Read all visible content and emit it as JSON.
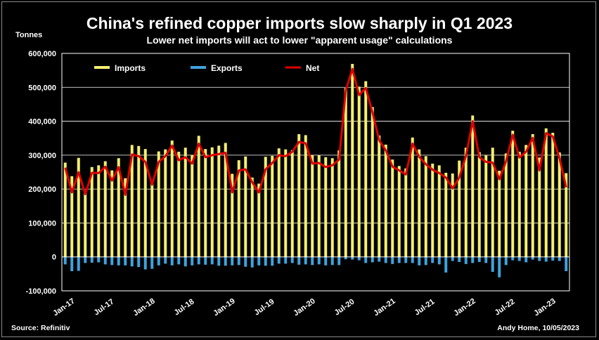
{
  "title": "China's refined copper imports slow sharply in Q1 2023",
  "subtitle": "Lower net imports will act to lower \"apparent usage\" calculations",
  "y_unit": "Tonnes",
  "source": "Source: Refinitiv",
  "byline": "Andy Home, 10/05/2023",
  "colors": {
    "imports": "#f5ef6e",
    "exports": "#3fa3dd",
    "net": "#e00000",
    "negative_tick": "#e00000"
  },
  "chart_data": {
    "type": "bar",
    "ylim": [
      -100000,
      600000
    ],
    "yticks": [
      {
        "value": 600000,
        "label": "600,000"
      },
      {
        "value": 500000,
        "label": "500,000"
      },
      {
        "value": 400000,
        "label": "400,000"
      },
      {
        "value": 300000,
        "label": "300,000"
      },
      {
        "value": 200000,
        "label": "200,000"
      },
      {
        "value": 100000,
        "label": "100,000"
      },
      {
        "value": 0,
        "label": "0"
      },
      {
        "value": -100000,
        "label": "-100,000"
      }
    ],
    "x_tick_labels": [
      {
        "index": 0,
        "label": "Jan-17"
      },
      {
        "index": 6,
        "label": "Jul-17"
      },
      {
        "index": 12,
        "label": "Jan-18"
      },
      {
        "index": 18,
        "label": "Jul-18"
      },
      {
        "index": 24,
        "label": "Jan-19"
      },
      {
        "index": 30,
        "label": "Jul-19"
      },
      {
        "index": 36,
        "label": "Jan-20"
      },
      {
        "index": 42,
        "label": "Jul-20"
      },
      {
        "index": 48,
        "label": "Jan-21"
      },
      {
        "index": 54,
        "label": "Jul-21"
      },
      {
        "index": 60,
        "label": "Jan-22"
      },
      {
        "index": 66,
        "label": "Jul-22"
      },
      {
        "index": 72,
        "label": "Jan-23"
      }
    ],
    "legend": {
      "placement": "top-left",
      "labels": [
        "Imports",
        "Exports",
        "Net"
      ]
    },
    "grid": true,
    "series": [
      {
        "name": "Imports",
        "type": "bar",
        "values": [
          278000,
          238000,
          292000,
          197000,
          265000,
          270000,
          282000,
          255000,
          291000,
          232000,
          330000,
          327000,
          318000,
          225000,
          311000,
          317000,
          343000,
          310000,
          322000,
          300000,
          357000,
          318000,
          323000,
          328000,
          336000,
          245000,
          285000,
          296000,
          234000,
          216000,
          295000,
          298000,
          320000,
          317000,
          315000,
          362000,
          359000,
          300000,
          300000,
          294000,
          291000,
          314000,
          498000,
          569000,
          502000,
          518000,
          442000,
          358000,
          331000,
          287000,
          268000,
          261000,
          352000,
          317000,
          297000,
          275000,
          270000,
          248000,
          246000,
          284000,
          322000,
          417000,
          309000,
          300000,
          322000,
          254000,
          305000,
          372000,
          310000,
          330000,
          362000,
          293000,
          379000,
          366000,
          308000,
          247000
        ]
      },
      {
        "name": "Exports",
        "type": "bar",
        "values": [
          -22000,
          -42000,
          -41000,
          -18000,
          -17000,
          -16000,
          -22000,
          -24000,
          -25000,
          -25000,
          -28000,
          -30000,
          -37000,
          -35000,
          -25000,
          -20000,
          -25000,
          -22000,
          -28000,
          -25000,
          -22000,
          -23000,
          -22000,
          -26000,
          -26000,
          -25000,
          -24000,
          -29000,
          -31000,
          -25000,
          -26000,
          -26000,
          -20000,
          -20000,
          -18000,
          -23000,
          -22000,
          -24000,
          -22000,
          -25000,
          -24000,
          -24000,
          -7000,
          -8000,
          -10000,
          -18000,
          -16000,
          -14000,
          -18000,
          -21000,
          -18000,
          -18000,
          -18000,
          -25000,
          -24000,
          -18000,
          -22000,
          -46000,
          -12000,
          -15000,
          -21000,
          -18000,
          -15000,
          -18000,
          -44000,
          -60000,
          -24000,
          -10000,
          -12000,
          -16000,
          -8000,
          -12000,
          -14000,
          -11000,
          -12000,
          -42000
        ]
      },
      {
        "name": "Net",
        "type": "line",
        "values": [
          263000,
          190000,
          250000,
          185000,
          248000,
          247000,
          266000,
          225000,
          265000,
          183000,
          302000,
          297000,
          280000,
          213000,
          280000,
          297000,
          328000,
          285000,
          294000,
          275000,
          334000,
          294000,
          300000,
          303000,
          307000,
          190000,
          255000,
          258000,
          220000,
          190000,
          258000,
          277000,
          300000,
          297000,
          310000,
          339000,
          335000,
          275000,
          277000,
          265000,
          270000,
          287000,
          491000,
          554000,
          477000,
          498000,
          426000,
          344000,
          314000,
          266000,
          255000,
          243000,
          334000,
          295000,
          273000,
          257000,
          247000,
          234000,
          202000,
          234000,
          298000,
          400000,
          294000,
          280000,
          278000,
          229000,
          282000,
          360000,
          293000,
          310000,
          351000,
          255000,
          365000,
          355000,
          291000,
          205000
        ]
      }
    ]
  }
}
